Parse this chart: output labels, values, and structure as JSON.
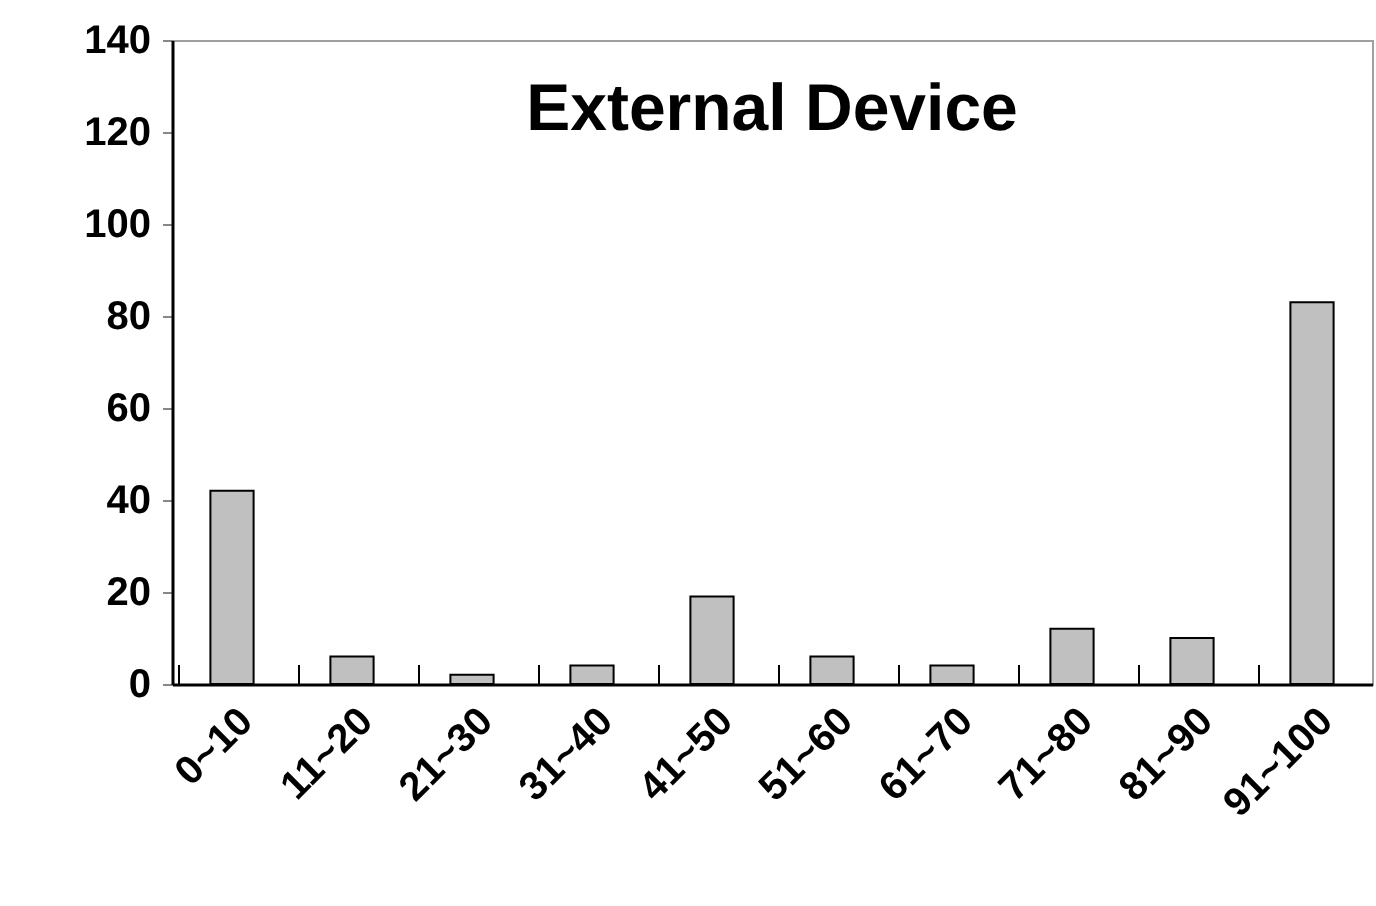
{
  "chart_data": {
    "type": "bar",
    "title": "External Device",
    "categories": [
      "0~10",
      "11~20",
      "21~30",
      "31~40",
      "41~50",
      "51~60",
      "61~70",
      "71~80",
      "81~90",
      "91~100"
    ],
    "values": [
      42,
      6,
      2,
      4,
      19,
      6,
      4,
      12,
      10,
      83
    ],
    "color": "#c0c0c0",
    "ylim": [
      0,
      140
    ],
    "yticks": [
      0,
      20,
      40,
      60,
      80,
      100,
      120,
      140
    ],
    "grid": false
  }
}
